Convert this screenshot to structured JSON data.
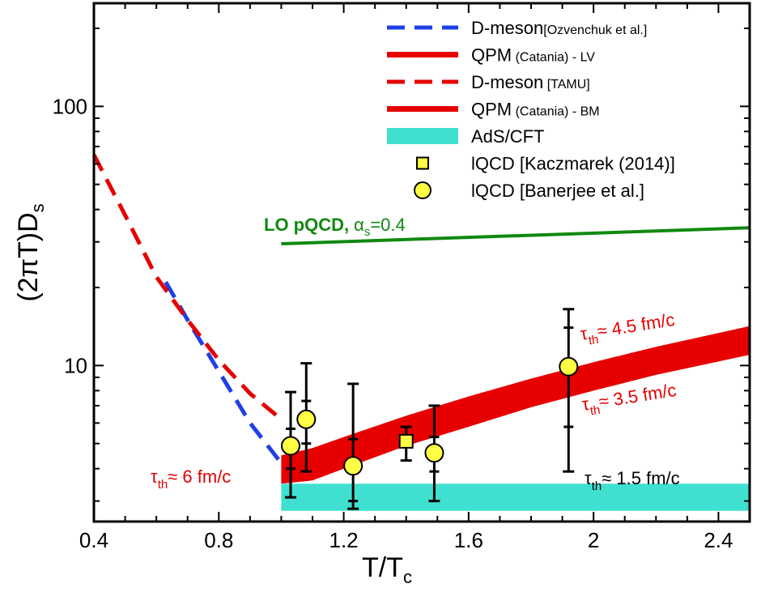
{
  "chart_data": {
    "type": "line",
    "xlabel": "T/T",
    "xlabel_sub": "c",
    "ylabel": "(2πT)D",
    "ylabel_sub": "s",
    "xlim": [
      0.4,
      2.5
    ],
    "ylim": [
      2.5,
      250
    ],
    "y_scale": "log",
    "x_ticks": [
      0.4,
      0.8,
      1.2,
      1.6,
      2.0,
      2.4
    ],
    "x_tick_labels": [
      "0.4",
      "0.8",
      "1.2",
      "1.6",
      "2",
      "2.4"
    ],
    "y_tick_labels": [
      {
        "value": 10,
        "label": "10"
      },
      {
        "value": 100,
        "label": "100"
      }
    ],
    "legend_position": "top-right",
    "legend": [
      {
        "key": "dmeson_ozv",
        "label": "D-meson",
        "label_small": "[Ozvenchuk et al.]",
        "style": "dashed-line",
        "color": "#1f3fe6"
      },
      {
        "key": "qpm_lv",
        "label": "QPM",
        "label_small": " (Catania) - LV",
        "style": "solid-line",
        "color": "#e60000"
      },
      {
        "key": "dmeson_tamu",
        "label": "D-meson",
        "label_small": " [TAMU]",
        "style": "dashed-line",
        "color": "#e60000"
      },
      {
        "key": "qpm_bm",
        "label": "QPM",
        "label_small": " (Catania) - BM",
        "style": "solid-line",
        "color": "#e60000"
      },
      {
        "key": "ads",
        "label": "AdS/CFT",
        "label_small": "",
        "style": "band",
        "color": "#40e0d0"
      },
      {
        "key": "lqcd_k",
        "label": "lQCD [Kaczmarek (2014)]",
        "label_small": "",
        "style": "square",
        "color": "#ffff44"
      },
      {
        "key": "lqcd_b",
        "label": "lQCD [Banerjee et al.]",
        "label_small": "",
        "style": "circle",
        "color": "#ffff44"
      }
    ],
    "series": [
      {
        "name": "D-meson[Ozvenchuk et al.]",
        "style": "dashed",
        "color": "#1f3fe6",
        "x": [
          0.63,
          0.7,
          0.8,
          0.9,
          1.0
        ],
        "y": [
          21,
          15,
          9.5,
          6,
          4.2
        ]
      },
      {
        "name": "D-meson [TAMU]",
        "style": "dashed",
        "color": "#e60000",
        "x": [
          0.4,
          0.5,
          0.6,
          0.7,
          0.8,
          0.9,
          1.0
        ],
        "y": [
          65,
          38,
          22,
          15,
          10.5,
          7.8,
          6.2
        ]
      },
      {
        "name": "QPM (Catania) - LV",
        "style": "band",
        "color": "#e60000",
        "x": [
          1.0,
          1.1,
          1.2,
          1.4,
          1.6,
          1.8,
          2.0,
          2.2,
          2.5
        ],
        "y_low": [
          3.5,
          3.6,
          4.0,
          4.9,
          5.8,
          6.9,
          8.0,
          9.2,
          11.0
        ],
        "y_high": [
          4.5,
          4.8,
          5.3,
          6.4,
          7.6,
          8.9,
          10.3,
          11.8,
          14.2
        ]
      },
      {
        "name": "AdS/CFT",
        "style": "band",
        "color": "#40e0d0",
        "x": [
          1.0,
          2.5
        ],
        "y_low": [
          2.75,
          2.75
        ],
        "y_high": [
          3.5,
          3.5
        ]
      },
      {
        "name": "LO pQCD",
        "style": "solid",
        "color": "#118811",
        "x": [
          1.0,
          2.5
        ],
        "y": [
          29.5,
          34
        ]
      }
    ],
    "points_square": [
      {
        "x": 1.4,
        "y": 5.1,
        "err_low": 4.3,
        "err_high": 5.8
      }
    ],
    "points_circle": [
      {
        "x": 1.03,
        "y": 4.9,
        "err_low": 3.1,
        "err_high": 7.9,
        "inner": [
          4.0,
          5.7
        ]
      },
      {
        "x": 1.08,
        "y": 6.2,
        "err_low": 3.9,
        "err_high": 10.2,
        "inner": [
          5.0,
          7.3
        ]
      },
      {
        "x": 1.23,
        "y": 4.1,
        "err_low": 2.8,
        "err_high": 8.5,
        "inner": [
          3.0,
          5.2
        ]
      },
      {
        "x": 1.49,
        "y": 4.6,
        "err_low": 3.0,
        "err_high": 7.0,
        "inner": [
          3.9,
          5.3
        ]
      },
      {
        "x": 1.92,
        "y": 9.9,
        "err_low": 3.9,
        "err_high": 16.5,
        "inner": [
          5.8,
          14.0
        ]
      }
    ],
    "annotations": {
      "pqcd": "LO pQCD,",
      "alpha": "α",
      "alpha_sub": "s",
      "alpha_val": "=0.4",
      "tau": "τ",
      "tau_sub": "th",
      "tau_45": "≈ 4.5 fm/c",
      "tau_35": "≈ 3.5 fm/c",
      "tau_6": "≈ 6 fm/c",
      "tau_15": "≈ 1.5 fm/c"
    }
  }
}
